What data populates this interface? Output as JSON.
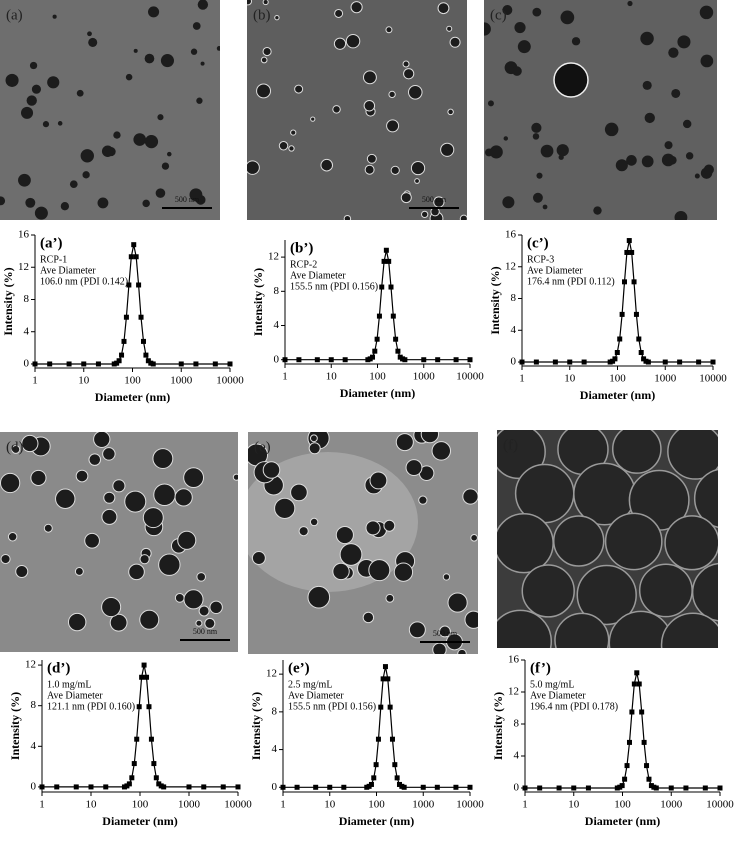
{
  "micrographs": [
    {
      "label": "(a)",
      "scale_bar": "500 nm"
    },
    {
      "label": "(b)",
      "scale_bar": "500 nm"
    },
    {
      "label": "(c)"
    },
    {
      "label": "(d)",
      "scale_bar": "500 nm"
    },
    {
      "label": "(e)",
      "scale_bar": "500 nm"
    },
    {
      "label": "(f)"
    }
  ],
  "chart_data": [
    {
      "type": "line",
      "label": "(a’)",
      "annotations": [
        "RCP-1",
        "Ave Diameter",
        "106.0 nm (PDI 0.142)"
      ],
      "x_label": "Diameter (nm)",
      "y_label": "Intensity (%)",
      "xscale": "log",
      "xlim": [
        1,
        10000
      ],
      "xticks": [
        1,
        10,
        100,
        1000,
        10000
      ],
      "ylim": [
        -0.5,
        16
      ],
      "yticks": [
        0,
        4,
        8,
        12,
        16
      ],
      "color": "#000000",
      "marker": "square",
      "x": [
        1,
        2,
        5,
        10,
        20,
        42.2,
        47.3,
        53.1,
        59.6,
        66.9,
        75.0,
        84.2,
        94.5,
        106,
        118.9,
        133.4,
        149.7,
        168.0,
        188.5,
        211.5,
        237.3,
        266.3,
        1000,
        2000,
        5000,
        10000
      ],
      "values": [
        0,
        0,
        0,
        0,
        0,
        0,
        0.1,
        0.4,
        1.1,
        2.8,
        5.8,
        9.8,
        13.3,
        14.8,
        13.3,
        9.8,
        5.8,
        2.8,
        1.1,
        0.4,
        0.1,
        0,
        0,
        0,
        0,
        0
      ]
    },
    {
      "type": "line",
      "label": "(b’)",
      "annotations": [
        "RCP-2",
        "Ave Diameter",
        "155.5 nm (PDI 0.156)"
      ],
      "x_label": "Diameter (nm)",
      "y_label": "Intensity (%)",
      "xscale": "log",
      "xlim": [
        1,
        10000
      ],
      "xticks": [
        1,
        10,
        100,
        1000,
        10000
      ],
      "ylim": [
        -0.5,
        14
      ],
      "yticks": [
        0,
        4,
        8,
        12
      ],
      "color": "#000000",
      "marker": "square",
      "x": [
        1,
        2,
        5,
        10,
        20,
        61.9,
        69.5,
        78.0,
        87.4,
        98.1,
        110.1,
        123.5,
        138.6,
        155.5,
        174.5,
        195.8,
        219.7,
        246.5,
        276.5,
        310.2,
        348.2,
        390.6,
        1000,
        2000,
        5000,
        10000
      ],
      "values": [
        0,
        0,
        0,
        0,
        0,
        0,
        0.1,
        0.3,
        1.0,
        2.4,
        5.1,
        8.5,
        11.5,
        12.8,
        11.5,
        8.5,
        5.1,
        2.4,
        1.0,
        0.3,
        0.1,
        0,
        0,
        0,
        0,
        0
      ]
    },
    {
      "type": "line",
      "label": "(c’)",
      "annotations": [
        "RCP-3",
        "Ave Diameter",
        "176.4 nm (PDI 0.112)"
      ],
      "x_label": "Diameter (nm)",
      "y_label": "Intensity (%)",
      "xscale": "log",
      "xlim": [
        1,
        10000
      ],
      "xticks": [
        1,
        10,
        100,
        1000,
        10000
      ],
      "ylim": [
        -0.5,
        16
      ],
      "yticks": [
        0,
        4,
        8,
        12,
        16
      ],
      "color": "#000000",
      "marker": "square",
      "x": [
        1,
        2,
        5,
        10,
        20,
        70.2,
        78.9,
        88.4,
        99.1,
        111.3,
        124.9,
        140.1,
        157.2,
        176.4,
        197.9,
        222.1,
        249.3,
        279.6,
        313.6,
        351.9,
        395.0,
        443.1,
        1000,
        2000,
        5000,
        10000
      ],
      "values": [
        0,
        0,
        0,
        0,
        0,
        0,
        0.1,
        0.4,
        1.2,
        2.9,
        6.0,
        10.1,
        13.8,
        15.3,
        13.8,
        10.1,
        6.0,
        2.9,
        1.2,
        0.4,
        0.1,
        0,
        0,
        0,
        0,
        0
      ]
    },
    {
      "type": "line",
      "label": "(d’)",
      "annotations": [
        "1.0 mg/mL",
        "Ave Diameter",
        "121.1 nm (PDI 0.160)"
      ],
      "x_label": "Diameter (nm)",
      "y_label": "Intensity (%)",
      "xscale": "log",
      "xlim": [
        1,
        10000
      ],
      "xticks": [
        1,
        10,
        100,
        1000,
        10000
      ],
      "ylim": [
        -0.5,
        12.5
      ],
      "yticks": [
        0,
        4,
        8,
        12
      ],
      "color": "#000000",
      "marker": "square",
      "x": [
        1,
        2,
        5,
        10,
        20,
        48.2,
        54.1,
        60.7,
        68.1,
        76.4,
        85.7,
        96.2,
        107.9,
        121.1,
        135.9,
        152.5,
        171.1,
        191.9,
        215.3,
        241.6,
        271.1,
        304.2,
        1000,
        2000,
        5000,
        10000
      ],
      "values": [
        0,
        0,
        0,
        0,
        0,
        0,
        0.1,
        0.3,
        0.9,
        2.3,
        4.7,
        7.9,
        10.8,
        12.0,
        10.8,
        7.9,
        4.7,
        2.3,
        0.9,
        0.3,
        0.1,
        0,
        0,
        0,
        0,
        0
      ]
    },
    {
      "type": "line",
      "label": "(e’)",
      "annotations": [
        "2.5 mg/mL",
        "Ave Diameter",
        "155.5 nm (PDI 0.156)"
      ],
      "x_label": "Diameter (nm)",
      "y_label": "Intensity (%)",
      "xscale": "log",
      "xlim": [
        1,
        10000
      ],
      "xticks": [
        1,
        10,
        100,
        1000,
        10000
      ],
      "ylim": [
        -0.5,
        13.5
      ],
      "yticks": [
        0,
        4,
        8,
        12
      ],
      "color": "#000000",
      "marker": "square",
      "x": [
        1,
        2,
        5,
        10,
        20,
        61.9,
        69.5,
        78.0,
        87.4,
        98.1,
        110.1,
        123.5,
        138.6,
        155.5,
        174.5,
        195.8,
        219.7,
        246.5,
        276.5,
        310.2,
        348.2,
        390.6,
        1000,
        2000,
        5000,
        10000
      ],
      "values": [
        0,
        0,
        0,
        0,
        0,
        0,
        0.1,
        0.3,
        1.0,
        2.4,
        5.1,
        8.5,
        11.5,
        12.8,
        11.5,
        8.5,
        5.1,
        2.4,
        1.0,
        0.3,
        0.1,
        0,
        0,
        0,
        0,
        0
      ]
    },
    {
      "type": "line",
      "label": "(f’)",
      "annotations": [
        "5.0 mg/mL",
        "Ave Diameter",
        "196.4 nm (PDI 0.178)"
      ],
      "x_label": "Diameter (nm)",
      "y_label": "Intensity (%)",
      "xscale": "log",
      "xlim": [
        1,
        10000
      ],
      "xticks": [
        1,
        10,
        100,
        1000,
        10000
      ],
      "ylim": [
        -0.5,
        16
      ],
      "yticks": [
        0,
        4,
        8,
        12,
        16
      ],
      "color": "#000000",
      "marker": "square",
      "x": [
        1,
        2,
        5,
        10,
        20,
        78.2,
        87.8,
        98.4,
        110.4,
        123.9,
        139.1,
        155.9,
        175.0,
        196.4,
        220.4,
        247.3,
        277.5,
        311.3,
        349.2,
        391.8,
        439.7,
        493.4,
        1000,
        2000,
        5000,
        10000
      ],
      "values": [
        0,
        0,
        0,
        0,
        0,
        0,
        0.1,
        0.3,
        1.1,
        2.8,
        5.7,
        9.5,
        13.0,
        14.4,
        13.0,
        9.5,
        5.7,
        2.8,
        1.1,
        0.3,
        0.1,
        0,
        0,
        0,
        0,
        0
      ]
    }
  ]
}
